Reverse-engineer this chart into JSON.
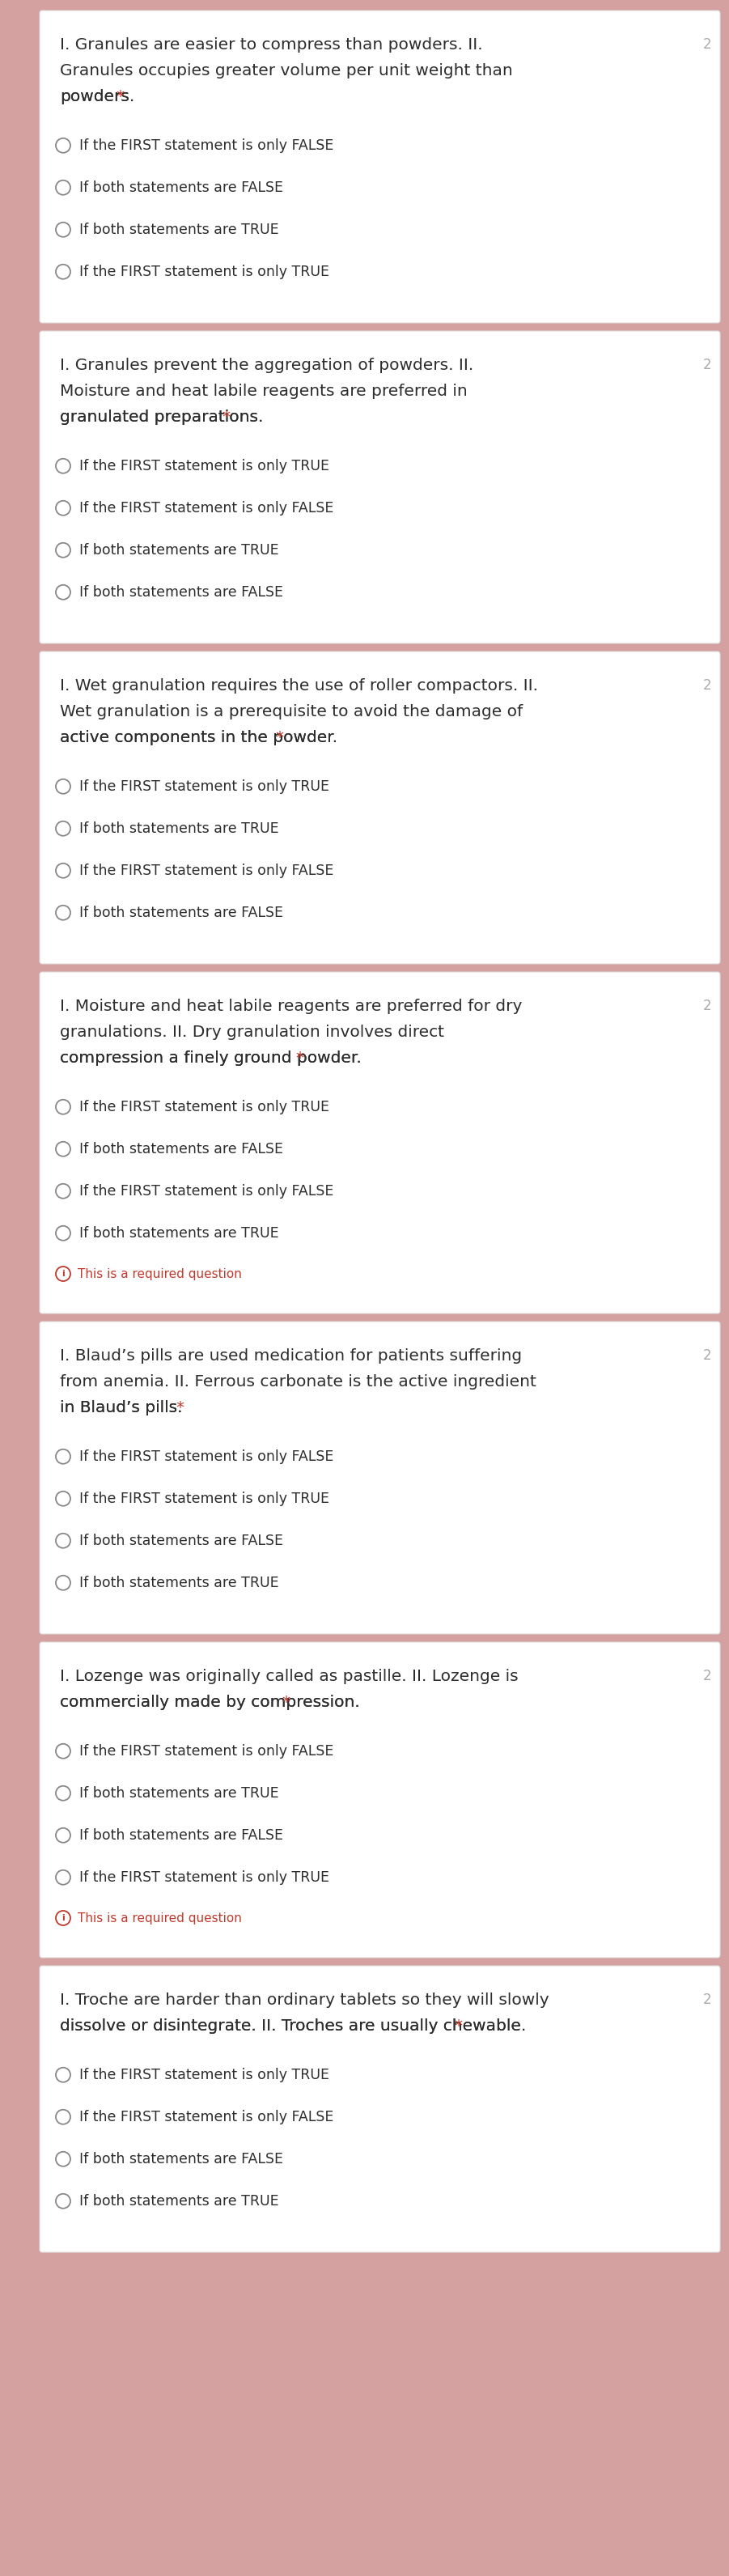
{
  "bg_color": "#d4a0a0",
  "card_color": "#ffffff",
  "text_color": "#2d2d2d",
  "radio_color": "#888888",
  "required_color": "#c0392b",
  "number_color": "#aaaaaa",
  "required_msg_color": "#c0392b",
  "questions": [
    {
      "question_lines": [
        "I. Granules are easier to compress than powders. II.",
        "Granules occupies greater volume per unit weight than",
        "powders."
      ],
      "has_asterisk": true,
      "number": "2",
      "has_required_msg": false,
      "options": [
        "If the FIRST statement is only FALSE",
        "If both statements are FALSE",
        "If both statements are TRUE",
        "If the FIRST statement is only TRUE"
      ]
    },
    {
      "question_lines": [
        "I. Granules prevent the aggregation of powders. II.",
        "Moisture and heat labile reagents are preferred in",
        "granulated preparations."
      ],
      "has_asterisk": true,
      "number": "2",
      "has_required_msg": false,
      "options": [
        "If the FIRST statement is only TRUE",
        "If the FIRST statement is only FALSE",
        "If both statements are TRUE",
        "If both statements are FALSE"
      ]
    },
    {
      "question_lines": [
        "I. Wet granulation requires the use of roller compactors. II.",
        "Wet granulation is a prerequisite to avoid the damage of",
        "active components in the powder."
      ],
      "has_asterisk": true,
      "number": "2",
      "has_required_msg": false,
      "options": [
        "If the FIRST statement is only TRUE",
        "If both statements are TRUE",
        "If the FIRST statement is only FALSE",
        "If both statements are FALSE"
      ]
    },
    {
      "question_lines": [
        "I. Moisture and heat labile reagents are preferred for dry",
        "granulations. II. Dry granulation involves direct",
        "compression a finely ground powder."
      ],
      "has_asterisk": true,
      "number": "2",
      "has_required_msg": true,
      "options": [
        "If the FIRST statement is only TRUE",
        "If both statements are FALSE",
        "If the FIRST statement is only FALSE",
        "If both statements are TRUE"
      ]
    },
    {
      "question_lines": [
        "I. Blaud’s pills are used medication for patients suffering",
        "from anemia. II. Ferrous carbonate is the active ingredient",
        "in Blaud’s pills."
      ],
      "has_asterisk": true,
      "number": "2",
      "has_required_msg": false,
      "options": [
        "If the FIRST statement is only FALSE",
        "If the FIRST statement is only TRUE",
        "If both statements are FALSE",
        "If both statements are TRUE"
      ]
    },
    {
      "question_lines": [
        "I. Lozenge was originally called as pastille. II. Lozenge is",
        "commercially made by compression."
      ],
      "has_asterisk": true,
      "number": "2",
      "has_required_msg": true,
      "options": [
        "If the FIRST statement is only FALSE",
        "If both statements are TRUE",
        "If both statements are FALSE",
        "If the FIRST statement is only TRUE"
      ]
    },
    {
      "question_lines": [
        "I. Troche are harder than ordinary tablets so they will slowly",
        "dissolve or disintegrate. II. Troches are usually chewable."
      ],
      "has_asterisk": true,
      "number": "2",
      "has_required_msg": false,
      "options": [
        "If the FIRST statement is only TRUE",
        "If the FIRST statement is only FALSE",
        "If both statements are FALSE",
        "If both statements are TRUE"
      ]
    }
  ]
}
